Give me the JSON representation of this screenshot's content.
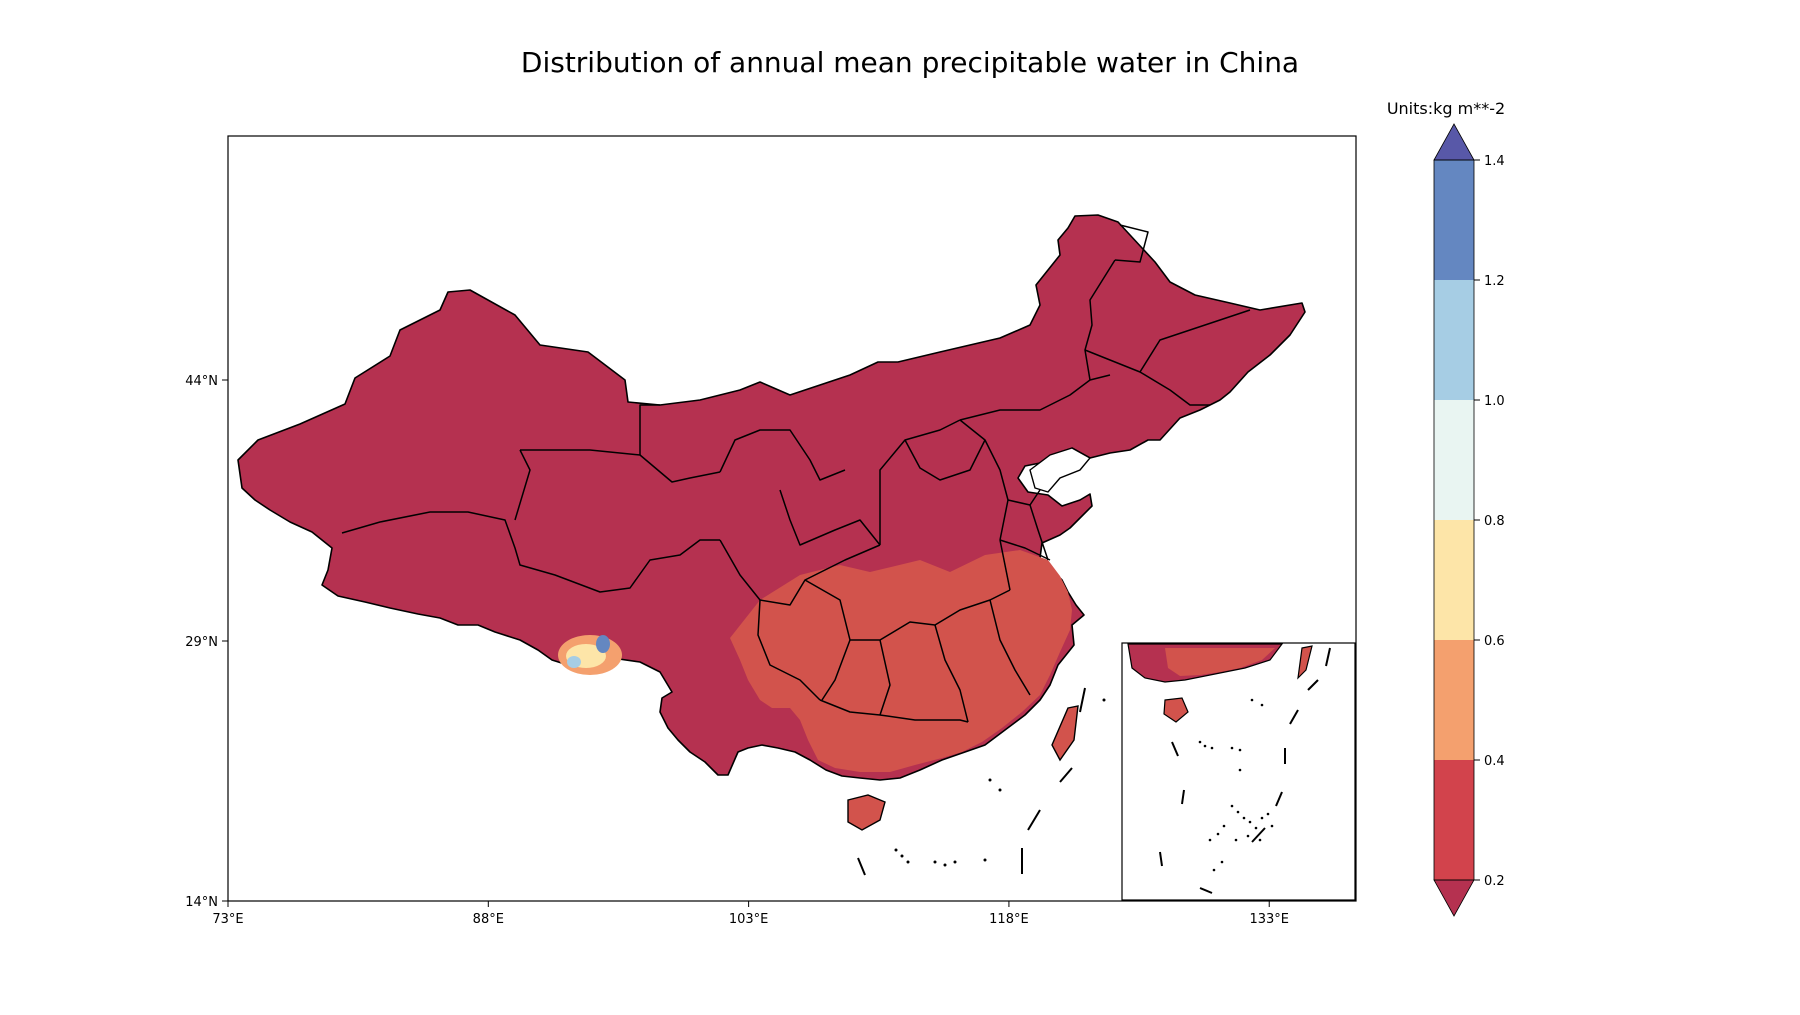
{
  "chart_data": {
    "type": "filled-contour-map",
    "title": "Distribution of annual mean precipitable water in China",
    "xlim": [
      73,
      138
    ],
    "ylim": [
      14,
      58
    ],
    "x_ticks": [
      {
        "value": 73,
        "label": "73°E"
      },
      {
        "value": 88,
        "label": "88°E"
      },
      {
        "value": 103,
        "label": "103°E"
      },
      {
        "value": 118,
        "label": "118°E"
      },
      {
        "value": 133,
        "label": "133°E"
      }
    ],
    "y_ticks": [
      {
        "value": 14,
        "label": "14°N"
      },
      {
        "value": 29,
        "label": "29°N"
      },
      {
        "value": 44,
        "label": "44°N"
      }
    ],
    "colorbar": {
      "units_label": "Units:kg m**-2",
      "extend": "both",
      "levels": [
        0.2,
        0.4,
        0.6,
        0.8,
        1.0,
        1.2,
        1.4
      ],
      "tick_labels": [
        "0.2",
        "0.4",
        "0.6",
        "0.8",
        "1.0",
        "1.2",
        "1.4"
      ],
      "colors": [
        "#d2434c",
        "#f4a06e",
        "#fde5a8",
        "#e9f5f2",
        "#a6cde4",
        "#6487c1"
      ],
      "under_color": "#b53150",
      "over_color": "#5858a8"
    },
    "regions": [
      {
        "name": "most of China",
        "level_range": "<0.2"
      },
      {
        "name": "southern and eastern China",
        "level_range": "0.2–0.4"
      },
      {
        "name": "southern Tibet (Himalaya) spot",
        "level_range": "0.2–>1.4"
      }
    ],
    "inset": "South China Sea islands",
    "grid": false
  }
}
